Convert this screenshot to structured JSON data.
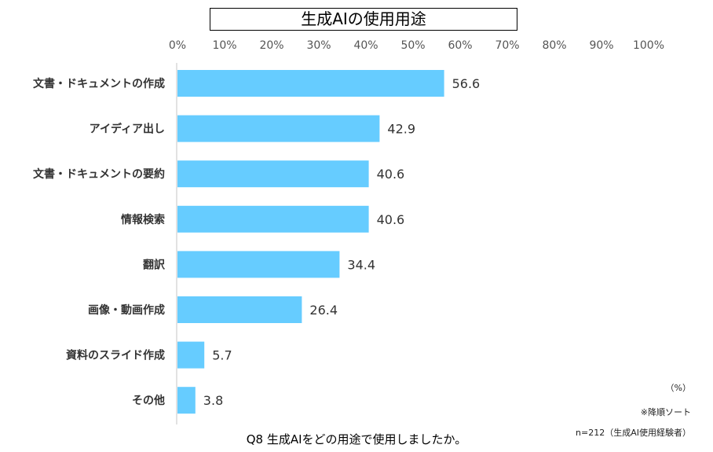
{
  "chart_data": {
    "type": "bar",
    "orientation": "horizontal",
    "title": "生成AIの使用用途",
    "categories": [
      "文書・ドキュメントの作成",
      "アイディア出し",
      "文書・ドキュメントの要約",
      "情報検索",
      "翻訳",
      "画像・動画作成",
      "資料のスライド作成",
      "その他"
    ],
    "values": [
      56.6,
      42.9,
      40.6,
      40.6,
      34.4,
      26.4,
      5.7,
      3.8
    ],
    "value_labels": [
      "56.6",
      "42.9",
      "40.6",
      "40.6",
      "34.4",
      "26.4",
      "5.7",
      "3.8"
    ],
    "xlim": [
      0,
      100
    ],
    "xticks": [
      "0%",
      "10%",
      "20%",
      "30%",
      "40%",
      "50%",
      "60%",
      "70%",
      "80%",
      "90%",
      "100%"
    ],
    "grid": false,
    "bar_color": "#66CCFF",
    "unit_label": "（%）",
    "sort_note": "※降順ソート",
    "sample_note": "n=212（生成AI使用経験者）",
    "caption": "Q8 生成AIをどの用途で使用しましたか。"
  }
}
